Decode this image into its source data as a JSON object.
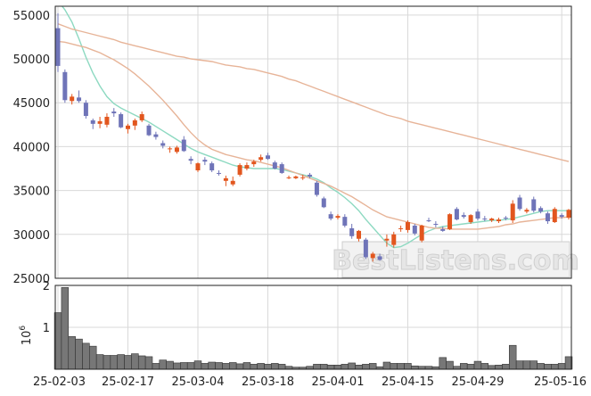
{
  "watermark": "BestListens.com",
  "chart_data": [
    {
      "type": "candlestick",
      "ylim": [
        25000,
        56000
      ],
      "yticks": [
        25000,
        30000,
        35000,
        40000,
        45000,
        50000,
        55000
      ],
      "grid": true,
      "up_color": "#e2561e",
      "down_color": "#6f74b8",
      "candles": [
        [
          53500,
          55200,
          48500,
          49200
        ],
        [
          48500,
          48800,
          45000,
          45300
        ],
        [
          45200,
          46000,
          44800,
          45700
        ],
        [
          45600,
          46400,
          45000,
          45200
        ],
        [
          45000,
          45300,
          43200,
          43500
        ],
        [
          43000,
          43200,
          42000,
          42600
        ],
        [
          42600,
          43400,
          42100,
          42900
        ],
        [
          42500,
          43800,
          42200,
          43400
        ],
        [
          44000,
          44400,
          43400,
          43800
        ],
        [
          43700,
          43900,
          42100,
          42200
        ],
        [
          42000,
          42600,
          41500,
          42400
        ],
        [
          42400,
          43200,
          41900,
          43000
        ],
        [
          43000,
          44000,
          42800,
          43700
        ],
        [
          42400,
          42600,
          41200,
          41300
        ],
        [
          41400,
          41700,
          40800,
          41100
        ],
        [
          40400,
          40700,
          39800,
          40100
        ],
        [
          39700,
          40000,
          39300,
          39800
        ],
        [
          39400,
          40100,
          39200,
          39900
        ],
        [
          40800,
          41200,
          39400,
          39500
        ],
        [
          38600,
          38900,
          38000,
          38400
        ],
        [
          37300,
          38200,
          37100,
          38100
        ],
        [
          38500,
          38800,
          37900,
          38300
        ],
        [
          38100,
          38300,
          37100,
          37300
        ],
        [
          37000,
          37300,
          36700,
          36900
        ],
        [
          36100,
          36700,
          35500,
          36400
        ],
        [
          35700,
          36600,
          35500,
          36100
        ],
        [
          36800,
          38100,
          36600,
          37900
        ],
        [
          37500,
          38200,
          37300,
          37900
        ],
        [
          38000,
          38500,
          37700,
          38300
        ],
        [
          38500,
          39100,
          38300,
          38800
        ],
        [
          39000,
          39300,
          38500,
          38600
        ],
        [
          38200,
          38400,
          37400,
          37500
        ],
        [
          38000,
          38200,
          36900,
          37000
        ],
        [
          36500,
          36700,
          36300,
          36500
        ],
        [
          36400,
          36700,
          36300,
          36600
        ],
        [
          36400,
          36800,
          36200,
          36500
        ],
        [
          36800,
          37000,
          36400,
          36600
        ],
        [
          35900,
          36100,
          34300,
          34500
        ],
        [
          34100,
          34300,
          33000,
          33100
        ],
        [
          32300,
          32600,
          31600,
          31800
        ],
        [
          31900,
          32300,
          31700,
          32100
        ],
        [
          32000,
          32300,
          30800,
          31000
        ],
        [
          30700,
          31200,
          29500,
          29800
        ],
        [
          29500,
          30500,
          29200,
          30400
        ],
        [
          29400,
          29600,
          27200,
          27400
        ],
        [
          27300,
          28000,
          26900,
          27800
        ],
        [
          27500,
          27800,
          27000,
          27100
        ],
        [
          29300,
          30000,
          28600,
          29500
        ],
        [
          28800,
          30300,
          28500,
          30000
        ],
        [
          30700,
          31000,
          30300,
          30700
        ],
        [
          30500,
          31600,
          30200,
          31400
        ],
        [
          31000,
          31200,
          29900,
          30100
        ],
        [
          29300,
          31100,
          29100,
          31000
        ],
        [
          31600,
          31900,
          31400,
          31500
        ],
        [
          31200,
          31500,
          30800,
          31100
        ],
        [
          30600,
          30900,
          30300,
          30400
        ],
        [
          30600,
          32400,
          30500,
          32300
        ],
        [
          32900,
          33100,
          31600,
          31700
        ],
        [
          32200,
          32500,
          31800,
          32000
        ],
        [
          31400,
          32300,
          31200,
          32200
        ],
        [
          32600,
          32900,
          31600,
          31800
        ],
        [
          31800,
          32100,
          31500,
          31700
        ],
        [
          31600,
          31900,
          31400,
          31800
        ],
        [
          31500,
          31900,
          31300,
          31700
        ],
        [
          31900,
          32100,
          31600,
          31800
        ],
        [
          31600,
          33900,
          31300,
          33500
        ],
        [
          34200,
          34500,
          32700,
          32900
        ],
        [
          32600,
          33000,
          32400,
          32800
        ],
        [
          34000,
          34300,
          32500,
          32700
        ],
        [
          33000,
          33200,
          32400,
          32600
        ],
        [
          32400,
          32600,
          31200,
          31500
        ],
        [
          31400,
          33100,
          31300,
          32900
        ],
        [
          32200,
          32400,
          31800,
          32000
        ],
        [
          31900,
          32900,
          31700,
          32800
        ]
      ],
      "moving_averages": [
        {
          "color": "#8dd9c1",
          "values": [
            56600,
            55600,
            54200,
            52300,
            50200,
            48400,
            46900,
            45700,
            44900,
            44400,
            44000,
            43600,
            43200,
            42800,
            42300,
            41800,
            41300,
            40800,
            40300,
            39800,
            39400,
            39100,
            38800,
            38500,
            38200,
            37900,
            37700,
            37600,
            37500,
            37500,
            37500,
            37500,
            37400,
            37200,
            37000,
            36800,
            36600,
            36300,
            35900,
            35300,
            34800,
            34200,
            33500,
            32700,
            31700,
            30800,
            29900,
            29000,
            28500,
            28600,
            29000,
            29500,
            30000,
            30400,
            30700,
            30900,
            31000,
            31100,
            31200,
            31300,
            31400,
            31500,
            31600,
            31600,
            31700,
            31800,
            32000,
            32200,
            32400,
            32600,
            32700,
            32700,
            32700,
            32700
          ]
        },
        {
          "color": "#e7b498",
          "values": [
            52000,
            51900,
            51700,
            51500,
            51300,
            51000,
            50700,
            50300,
            49900,
            49400,
            48900,
            48300,
            47600,
            46900,
            46100,
            45300,
            44400,
            43500,
            42500,
            41600,
            40800,
            40200,
            39700,
            39400,
            39100,
            38900,
            38700,
            38500,
            38400,
            38200,
            38000,
            37800,
            37600,
            37300,
            37000,
            36700,
            36400,
            36100,
            35800,
            35500,
            35100,
            34700,
            34300,
            33800,
            33300,
            32800,
            32400,
            32000,
            31800,
            31600,
            31400,
            31200,
            31000,
            30800,
            30700,
            30700,
            30600,
            30600,
            30600,
            30600,
            30600,
            30700,
            30800,
            30900,
            31100,
            31200,
            31400,
            31500,
            31600,
            31700,
            31800,
            31900,
            31900,
            32000
          ]
        },
        {
          "color": "#e7b498",
          "values": [
            54000,
            53700,
            53400,
            53200,
            53000,
            52800,
            52600,
            52400,
            52200,
            51900,
            51700,
            51500,
            51300,
            51100,
            50900,
            50700,
            50500,
            50300,
            50200,
            50000,
            49900,
            49800,
            49700,
            49500,
            49300,
            49200,
            49100,
            48900,
            48800,
            48600,
            48400,
            48200,
            48000,
            47700,
            47500,
            47200,
            46900,
            46600,
            46300,
            46000,
            45700,
            45400,
            45100,
            44800,
            44500,
            44200,
            43900,
            43600,
            43400,
            43200,
            42900,
            42700,
            42500,
            42300,
            42100,
            41900,
            41700,
            41500,
            41300,
            41100,
            40900,
            40700,
            40500,
            40300,
            40100,
            39900,
            39700,
            39500,
            39300,
            39100,
            38900,
            38700,
            38500,
            38300
          ]
        }
      ]
    },
    {
      "type": "bar",
      "ylabel_base": "10",
      "ylabel_exp": "6",
      "ylim": [
        0,
        2
      ],
      "yticks": [
        1,
        2
      ],
      "bar_color": "#777777",
      "values": [
        1.35,
        1.95,
        0.78,
        0.72,
        0.62,
        0.55,
        0.35,
        0.33,
        0.33,
        0.35,
        0.33,
        0.37,
        0.32,
        0.3,
        0.14,
        0.22,
        0.19,
        0.15,
        0.16,
        0.16,
        0.2,
        0.14,
        0.17,
        0.16,
        0.14,
        0.16,
        0.13,
        0.16,
        0.12,
        0.14,
        0.12,
        0.14,
        0.12,
        0.07,
        0.05,
        0.05,
        0.07,
        0.12,
        0.12,
        0.1,
        0.1,
        0.12,
        0.15,
        0.1,
        0.12,
        0.14,
        0.06,
        0.17,
        0.14,
        0.14,
        0.14,
        0.08,
        0.07,
        0.07,
        0.06,
        0.28,
        0.19,
        0.07,
        0.14,
        0.12,
        0.19,
        0.14,
        0.09,
        0.1,
        0.12,
        0.57,
        0.2,
        0.2,
        0.2,
        0.14,
        0.12,
        0.12,
        0.14,
        0.3
      ],
      "x_tick_labels": [
        "25-02-03",
        "25-02-17",
        "25-03-04",
        "25-03-18",
        "25-04-01",
        "25-04-15",
        "25-04-29",
        "25-05-16"
      ],
      "x_tick_index": [
        0,
        10,
        20,
        30,
        40,
        50,
        60,
        72
      ]
    }
  ]
}
